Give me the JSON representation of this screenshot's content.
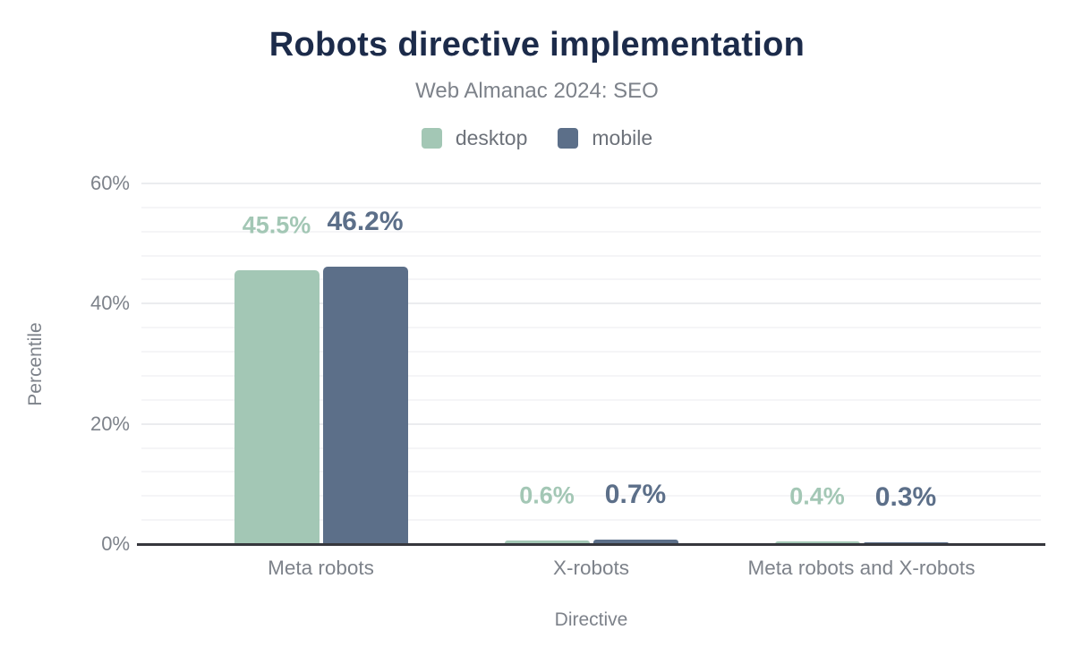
{
  "chart_data": {
    "type": "bar",
    "title": "Robots directive implementation",
    "subtitle": "Web Almanac 2024: SEO",
    "categories": [
      "Meta robots",
      "X-robots",
      "Meta robots and X-robots"
    ],
    "series": [
      {
        "name": "desktop",
        "color": "#a3c7b5",
        "values": [
          45.5,
          0.6,
          0.4
        ],
        "labels": [
          "45.5%",
          "0.6%",
          "0.4%"
        ]
      },
      {
        "name": "mobile",
        "color": "#5c6f89",
        "values": [
          46.2,
          0.7,
          0.3
        ],
        "labels": [
          "46.2%",
          "0.7%",
          "0.3%"
        ]
      }
    ],
    "xlabel": "Directive",
    "ylabel": "Percentile",
    "ylim": [
      0,
      60
    ],
    "yticks": [
      {
        "value": 0,
        "label": "0%"
      },
      {
        "value": 20,
        "label": "20%"
      },
      {
        "value": 40,
        "label": "40%"
      },
      {
        "value": 60,
        "label": "60%"
      }
    ],
    "minor_gridline_step_pct": 4,
    "grid": true,
    "legend_position": "top"
  },
  "colors": {
    "title_text": "#1c2b4a",
    "axis_text": "#7d828a",
    "axis_line": "#36373d",
    "major_gridline": "#ebecef",
    "minor_gridline": "#f5f5f7",
    "background": "#ffffff"
  }
}
